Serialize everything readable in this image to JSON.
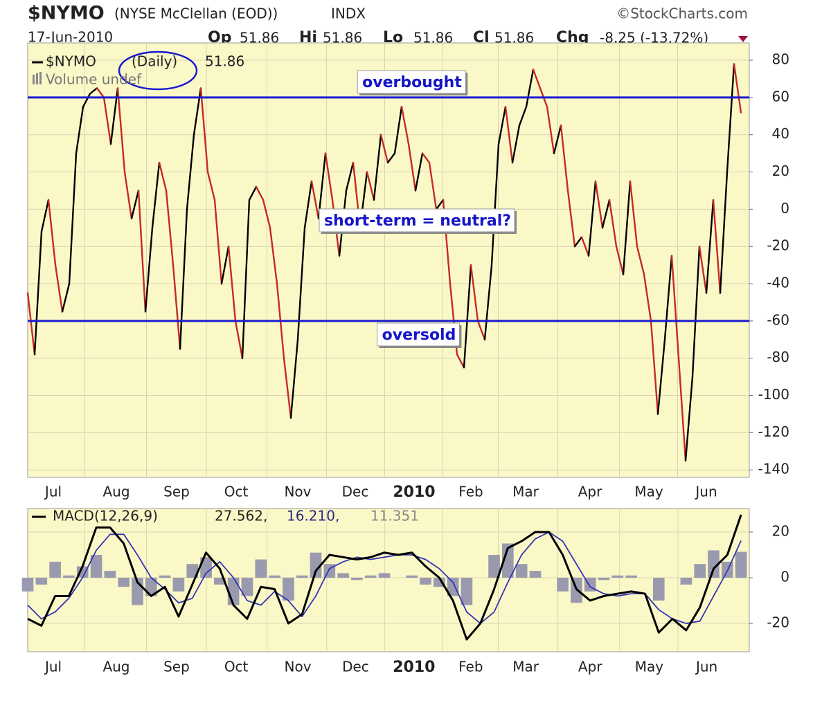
{
  "chart_data": [
    {
      "type": "line",
      "title": "$NYMO",
      "subtitle": "(NYSE McClellan (EOD))",
      "exchange": "INDX",
      "source": "©StockCharts.com",
      "date": "17-Jun-2010",
      "quote": [
        {
          "label": "Op",
          "value": 51.86
        },
        {
          "label": "Hi",
          "value": 51.86
        },
        {
          "label": "Lo",
          "value": 51.86
        },
        {
          "label": "Cl",
          "value": 51.86
        },
        {
          "label": "Chg",
          "value": "-8.25 (-13.72%)"
        }
      ],
      "legend": {
        "symbol": "$NYMO",
        "period": "(Daily)",
        "last": 51.86,
        "volume": "Volume undef"
      },
      "up_color": "#000000",
      "down_color": "#c62828",
      "background": "#fbf8c8",
      "values": [
        -45,
        -78,
        -12,
        5,
        -30,
        -55,
        -40,
        30,
        55,
        62,
        65,
        60,
        35,
        65,
        20,
        -5,
        10,
        -55,
        -10,
        25,
        10,
        -30,
        -75,
        0,
        40,
        65,
        20,
        5,
        -40,
        -20,
        -60,
        -80,
        5,
        12,
        5,
        -10,
        -40,
        -80,
        -112,
        -70,
        -10,
        15,
        -5,
        30,
        5,
        -25,
        10,
        25,
        -10,
        20,
        5,
        40,
        25,
        30,
        55,
        35,
        10,
        30,
        25,
        0,
        5,
        -40,
        -78,
        -85,
        -30,
        -60,
        -70,
        -30,
        35,
        55,
        25,
        45,
        55,
        75,
        65,
        55,
        30,
        45,
        10,
        -20,
        -15,
        -25,
        15,
        -10,
        5,
        -20,
        -35,
        15,
        -20,
        -35,
        -60,
        -110,
        -70,
        -25,
        -80,
        -135,
        -90,
        -20,
        -45,
        5,
        -45,
        20,
        78,
        51.86
      ],
      "xlim": [
        0,
        104.2
      ],
      "xticks": [
        {
          "value": 3.7,
          "label": "Jul"
        },
        {
          "value": 12.8,
          "label": "Aug"
        },
        {
          "value": 21.5,
          "label": "Sep"
        },
        {
          "value": 30.1,
          "label": "Oct"
        },
        {
          "value": 39,
          "label": "Nov"
        },
        {
          "value": 47.3,
          "label": "Dec"
        },
        {
          "value": 55.8,
          "label": "2010",
          "bold": true
        },
        {
          "value": 64,
          "label": "Feb"
        },
        {
          "value": 71.9,
          "label": "Mar"
        },
        {
          "value": 81.2,
          "label": "Apr"
        },
        {
          "value": 89.7,
          "label": "May"
        },
        {
          "value": 98,
          "label": "Jun"
        }
      ],
      "ylim": [
        -144,
        89.3
      ],
      "yticks": [
        80,
        60,
        40,
        20,
        0,
        -20,
        -40,
        -60,
        -80,
        -100,
        -120,
        -140
      ],
      "grid": true,
      "hlines": [
        {
          "value": 60,
          "label": "overbought",
          "color": "#1a1ad0"
        },
        {
          "value": -60,
          "label": "oversold",
          "color": "#1a1ad0"
        }
      ],
      "annotations": [
        "short-term = neutral?"
      ]
    },
    {
      "type": "line",
      "legend_title": "MACD(12,26,9)",
      "background": "#fbf8c8",
      "series": [
        {
          "type": "bar",
          "color": "#9a9aae",
          "last_label": "11.351",
          "values": [
            -6,
            -3,
            7,
            1,
            5,
            10,
            3,
            -4,
            -12,
            -8,
            1,
            -6,
            6,
            9,
            -3,
            -12,
            -8,
            8,
            1,
            -10,
            1,
            11,
            6,
            2,
            -1,
            1,
            2,
            0,
            1,
            -3,
            -4,
            -8,
            -12,
            0,
            10,
            15,
            6,
            3,
            0,
            -6,
            -11,
            -6,
            -1,
            1,
            1,
            0,
            -10,
            0,
            -3,
            6,
            12,
            7,
            11.351
          ]
        },
        {
          "type": "line",
          "color": "#3434b4",
          "last_label": "16.210,",
          "values": [
            -12,
            -18,
            -15,
            -9,
            0,
            12,
            19,
            19,
            10,
            0,
            -5,
            -11,
            -9,
            2,
            7,
            0,
            -10,
            -12,
            -6,
            -10,
            -17,
            -8,
            4,
            7,
            9,
            8,
            9,
            10,
            10,
            8,
            4,
            -2,
            -15,
            -20,
            -15,
            -2,
            10,
            17,
            20,
            16,
            6,
            -4,
            -7,
            -8,
            -7,
            -7,
            -14,
            -18,
            -20,
            -19,
            -8,
            3,
            16.21
          ]
        },
        {
          "type": "line",
          "color": "#000000",
          "last_label": "27.562,",
          "values": [
            -18,
            -21,
            -8,
            -8,
            5,
            22,
            22,
            15,
            -2,
            -8,
            -4,
            -17,
            -3,
            11,
            4,
            -12,
            -18,
            -4,
            -5,
            -20,
            -16,
            3,
            10,
            9,
            8,
            9,
            11,
            10,
            11,
            5,
            0,
            -10,
            -27,
            -20,
            -5,
            13,
            16,
            20,
            20,
            10,
            -5,
            -10,
            -8,
            -7,
            -6,
            -7,
            -24,
            -18,
            -23,
            -13,
            4,
            10,
            27.562
          ]
        }
      ],
      "xlim": [
        0,
        52.6
      ],
      "xticks": [
        {
          "value": 1.87,
          "label": "Jul"
        },
        {
          "value": 6.46,
          "label": "Aug"
        },
        {
          "value": 10.85,
          "label": "Sep"
        },
        {
          "value": 15.2,
          "label": "Oct"
        },
        {
          "value": 19.69,
          "label": "Nov"
        },
        {
          "value": 23.9,
          "label": "Dec"
        },
        {
          "value": 28.16,
          "label": "2010",
          "bold": true
        },
        {
          "value": 32.3,
          "label": "Feb"
        },
        {
          "value": 36.3,
          "label": "Mar"
        },
        {
          "value": 41,
          "label": "Apr"
        },
        {
          "value": 45.3,
          "label": "May"
        },
        {
          "value": 49.5,
          "label": "Jun"
        }
      ],
      "ylim": [
        -32.4,
        30.3
      ],
      "yticks": [
        20,
        0,
        -20
      ],
      "grid": true
    }
  ]
}
